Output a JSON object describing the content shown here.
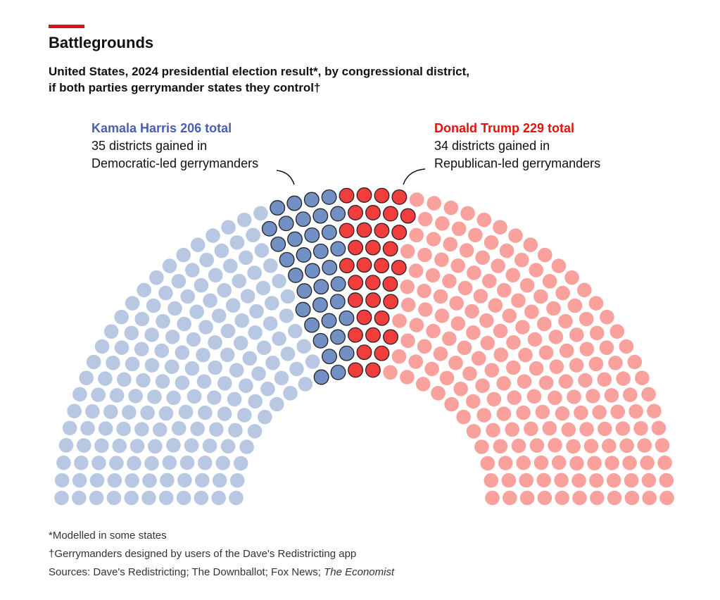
{
  "header": {
    "title": "Battlegrounds",
    "subtitle_line1": "United States, 2024 presidential election result*, by congressional district,",
    "subtitle_line2": "if both parties gerrymander states they control†"
  },
  "labels": {
    "harris_total": "Kamala Harris 206 total",
    "harris_note1": "35 districts gained in",
    "harris_note2": "Democratic-led gerrymanders",
    "trump_total": "Donald Trump 229 total",
    "trump_note1": "34 districts gained in",
    "trump_note2": "Republican-led gerrymanders"
  },
  "footer": {
    "note1": "*Modelled in some states",
    "note2": "†Gerrymanders designed by users of the Dave's Redistricting app",
    "sources": "Sources: Dave's Redistricting; The Downballot; Fox News; ",
    "sources_italic": "The Economist"
  },
  "chart_data": {
    "type": "parliament",
    "total": 435,
    "rings": 11,
    "series": [
      {
        "name": "Harris (other districts)",
        "values": [
          171
        ],
        "color": "#b8c8e2"
      },
      {
        "name": "Harris (gained in Democratic-led gerrymanders)",
        "values": [
          35
        ],
        "color": "#7390c4"
      },
      {
        "name": "Trump (gained in Republican-led gerrymanders)",
        "values": [
          34
        ],
        "color": "#f23d3d"
      },
      {
        "name": "Trump (other districts)",
        "values": [
          195
        ],
        "color": "#f8a19d"
      }
    ],
    "totals": {
      "Harris": 206,
      "Trump": 229
    }
  }
}
